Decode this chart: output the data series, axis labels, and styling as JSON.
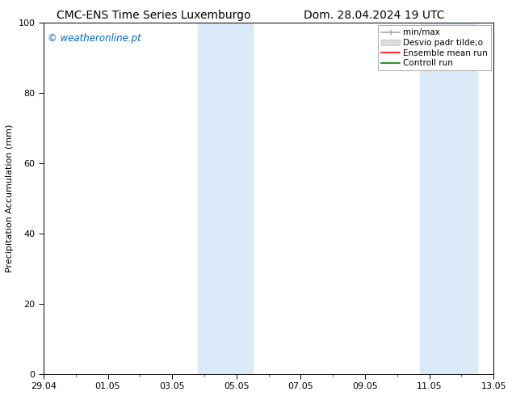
{
  "title_left": "CMC-ENS Time Series Luxemburgo",
  "title_right": "Dom. 28.04.2024 19 UTC",
  "ylabel": "Precipitation Accumulation (mm)",
  "ylim": [
    0,
    100
  ],
  "yticks": [
    0,
    20,
    40,
    60,
    80,
    100
  ],
  "xtick_labels": [
    "29.04",
    "01.05",
    "03.05",
    "05.05",
    "07.05",
    "09.05",
    "11.05",
    "13.05"
  ],
  "xtick_positions": [
    0,
    2,
    4,
    6,
    8,
    10,
    12,
    14
  ],
  "x_total": 14,
  "band1_x0": 4.8,
  "band1_x1": 6.5,
  "band2_x0": 11.7,
  "band2_x1": 13.5,
  "shade_color": "#daeaf8",
  "watermark_text": "© weatheronline.pt",
  "watermark_color": "#0066cc",
  "legend_labels": [
    "min/max",
    "Desvio padr tilde;o",
    "Ensemble mean run",
    "Controll run"
  ],
  "legend_colors": [
    "#aaaaaa",
    "#cccccc",
    "red",
    "green"
  ],
  "bg_color": "#ffffff",
  "title_fontsize": 10,
  "axis_label_fontsize": 8,
  "tick_fontsize": 8,
  "legend_fontsize": 7.5
}
